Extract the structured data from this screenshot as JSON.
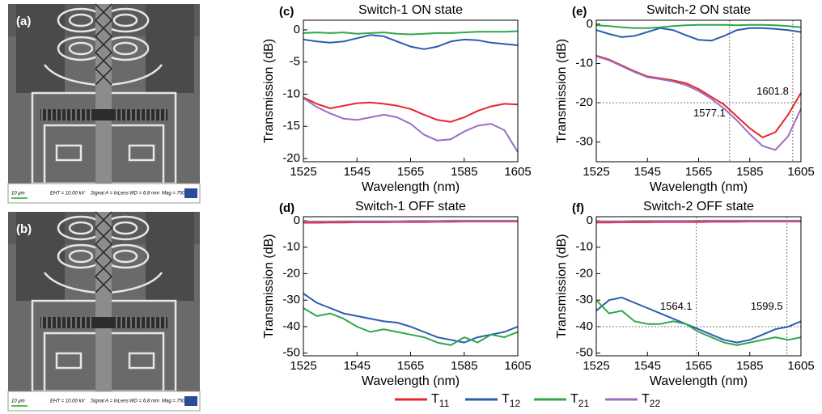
{
  "images": [
    {
      "label": "(a)",
      "info": [
        "10 μm",
        "EHT = 10.00 kV",
        "Signal A = InLens",
        "WD = 6.8 mm",
        "Mag = 750 X"
      ]
    },
    {
      "label": "(b)",
      "info": [
        "10 μm",
        "EHT = 10.00 kV",
        "Signal A = InLens",
        "WD = 6.8 mm",
        "Mag = 750 X"
      ]
    }
  ],
  "legend": [
    {
      "name": "T11",
      "color": "#e8262a"
    },
    {
      "name": "T12",
      "color": "#2a5db0"
    },
    {
      "name": "T21",
      "color": "#2ea84a"
    },
    {
      "name": "T22",
      "color": "#9b6ec0"
    }
  ],
  "chart_data": [
    {
      "type": "line",
      "panel_label": "(c)",
      "title": "Switch-1 ON state",
      "xlabel": "Wavelength (nm)",
      "ylabel": "Transmission (dB)",
      "x": [
        1525,
        1530,
        1535,
        1540,
        1545,
        1550,
        1555,
        1560,
        1565,
        1570,
        1575,
        1580,
        1585,
        1590,
        1595,
        1600,
        1605
      ],
      "xlim": [
        1525,
        1605
      ],
      "xticks": [
        1525,
        1545,
        1565,
        1585,
        1605
      ],
      "ylim": [
        -20.5,
        1.5
      ],
      "yticks": [
        0,
        -5,
        -10,
        -15,
        -20
      ],
      "series": [
        {
          "color": "#e8262a",
          "values": [
            -10.5,
            -11.5,
            -12.2,
            -11.8,
            -11.4,
            -11.3,
            -11.5,
            -11.8,
            -12.3,
            -13.2,
            -14.0,
            -14.3,
            -13.6,
            -12.6,
            -11.9,
            -11.5,
            -11.6
          ]
        },
        {
          "color": "#2a5db0",
          "values": [
            -1.5,
            -1.8,
            -2.0,
            -1.8,
            -1.3,
            -0.8,
            -1.0,
            -1.8,
            -2.6,
            -3.0,
            -2.6,
            -1.8,
            -1.5,
            -1.6,
            -2.0,
            -2.2,
            -2.4
          ]
        },
        {
          "color": "#2ea84a",
          "values": [
            -0.5,
            -0.4,
            -0.5,
            -0.4,
            -0.6,
            -0.5,
            -0.4,
            -0.6,
            -0.7,
            -0.6,
            -0.5,
            -0.5,
            -0.4,
            -0.3,
            -0.3,
            -0.3,
            -0.2
          ]
        },
        {
          "color": "#9b6ec0",
          "values": [
            -10.6,
            -12.0,
            -13.0,
            -13.8,
            -14.0,
            -13.6,
            -13.2,
            -13.6,
            -14.6,
            -16.3,
            -17.2,
            -17.0,
            -15.8,
            -14.9,
            -14.6,
            -15.6,
            -19.0
          ]
        }
      ]
    },
    {
      "type": "line",
      "panel_label": "(e)",
      "title": "Switch-2 ON state",
      "xlabel": "Wavelength (nm)",
      "ylabel": "Transmission (dB)",
      "x": [
        1525,
        1530,
        1535,
        1540,
        1545,
        1550,
        1555,
        1560,
        1565,
        1570,
        1575,
        1580,
        1585,
        1590,
        1595,
        1600,
        1605
      ],
      "xlim": [
        1525,
        1605
      ],
      "xticks": [
        1525,
        1545,
        1565,
        1585,
        1605
      ],
      "ylim": [
        -35,
        1
      ],
      "yticks": [
        0,
        -10,
        -20,
        -30
      ],
      "markers": [
        1577.1,
        1601.8
      ],
      "threshold": -20,
      "series": [
        {
          "color": "#e8262a",
          "values": [
            -8.0,
            -9.0,
            -10.5,
            -12.0,
            -13.3,
            -13.8,
            -14.3,
            -15.0,
            -16.5,
            -18.5,
            -20.5,
            -23.5,
            -26.5,
            -28.8,
            -27.5,
            -23.0,
            -17.5
          ]
        },
        {
          "color": "#2a5db0",
          "values": [
            -1.5,
            -2.5,
            -3.3,
            -3.0,
            -2.0,
            -1.0,
            -1.5,
            -2.8,
            -4.0,
            -4.2,
            -3.0,
            -1.5,
            -1.0,
            -1.0,
            -1.2,
            -1.5,
            -2.0
          ]
        },
        {
          "color": "#2ea84a",
          "values": [
            -0.3,
            -0.5,
            -0.8,
            -1.0,
            -1.0,
            -0.8,
            -0.5,
            -0.3,
            -0.2,
            -0.2,
            -0.2,
            -0.3,
            -0.2,
            -0.2,
            -0.3,
            -0.5,
            -0.8
          ]
        },
        {
          "color": "#9b6ec0",
          "values": [
            -8.2,
            -9.2,
            -10.7,
            -12.2,
            -13.5,
            -14.0,
            -14.6,
            -15.5,
            -17.0,
            -19.0,
            -21.5,
            -24.5,
            -28.0,
            -31.0,
            -32.0,
            -28.5,
            -21.5
          ]
        }
      ]
    },
    {
      "type": "line",
      "panel_label": "(d)",
      "title": "Switch-1 OFF state",
      "xlabel": "Wavelength (nm)",
      "ylabel": "Transmission (dB)",
      "x": [
        1525,
        1530,
        1535,
        1540,
        1545,
        1550,
        1555,
        1560,
        1565,
        1570,
        1575,
        1580,
        1585,
        1590,
        1595,
        1600,
        1605
      ],
      "xlim": [
        1525,
        1605
      ],
      "xticks": [
        1525,
        1545,
        1565,
        1585,
        1605
      ],
      "ylim": [
        -51,
        1.5
      ],
      "yticks": [
        0,
        -10,
        -20,
        -30,
        -40,
        -50
      ],
      "series": [
        {
          "color": "#e8262a",
          "values": [
            -0.8,
            -0.8,
            -0.7,
            -0.7,
            -0.6,
            -0.6,
            -0.6,
            -0.5,
            -0.5,
            -0.5,
            -0.4,
            -0.4,
            -0.3,
            -0.3,
            -0.3,
            -0.3,
            -0.3
          ]
        },
        {
          "color": "#2a5db0",
          "values": [
            -27.5,
            -31,
            -33,
            -35,
            -36,
            -37,
            -38,
            -38.5,
            -40,
            -42,
            -44,
            -45,
            -46,
            -44,
            -43,
            -42,
            -40
          ]
        },
        {
          "color": "#2ea84a",
          "values": [
            -33,
            -36,
            -35,
            -37,
            -40,
            -42,
            -41,
            -42,
            -43,
            -44,
            -46,
            -47,
            -44,
            -46,
            -43,
            -44,
            -42
          ]
        },
        {
          "color": "#9b6ec0",
          "values": [
            -0.3,
            -0.3,
            -0.3,
            -0.2,
            -0.2,
            -0.2,
            -0.2,
            -0.2,
            -0.1,
            -0.1,
            -0.1,
            0,
            0,
            0,
            0,
            0,
            0
          ]
        }
      ]
    },
    {
      "type": "line",
      "panel_label": "(f)",
      "title": "Switch-2 OFF state",
      "xlabel": "Wavelength (nm)",
      "ylabel": "Transmission (dB)",
      "x": [
        1525,
        1530,
        1535,
        1540,
        1545,
        1550,
        1555,
        1560,
        1565,
        1570,
        1575,
        1580,
        1585,
        1590,
        1595,
        1600,
        1605
      ],
      "xlim": [
        1525,
        1605
      ],
      "xticks": [
        1525,
        1545,
        1565,
        1585,
        1605
      ],
      "ylim": [
        -51,
        1.5
      ],
      "yticks": [
        0,
        -10,
        -20,
        -30,
        -40,
        -50
      ],
      "markers": [
        1564.1,
        1599.5
      ],
      "threshold": -40,
      "series": [
        {
          "color": "#e8262a",
          "values": [
            -0.7,
            -0.7,
            -0.6,
            -0.6,
            -0.6,
            -0.5,
            -0.5,
            -0.5,
            -0.5,
            -0.4,
            -0.4,
            -0.4,
            -0.3,
            -0.3,
            -0.3,
            -0.3,
            -0.3
          ]
        },
        {
          "color": "#2a5db0",
          "values": [
            -34,
            -30,
            -29,
            -31,
            -33,
            -35,
            -37,
            -39,
            -41,
            -43,
            -45,
            -46,
            -45,
            -43,
            -41,
            -40,
            -38
          ]
        },
        {
          "color": "#2ea84a",
          "values": [
            -30,
            -35,
            -34,
            -38,
            -39,
            -39,
            -38,
            -39,
            -42,
            -44,
            -46,
            -47,
            -46,
            -45,
            -44,
            -45,
            -44
          ]
        },
        {
          "color": "#9b6ec0",
          "values": [
            -0.2,
            -0.2,
            -0.2,
            -0.1,
            -0.1,
            -0.1,
            -0.1,
            -0.1,
            0,
            0,
            0,
            0,
            0,
            0,
            0,
            0,
            0
          ]
        }
      ]
    }
  ]
}
